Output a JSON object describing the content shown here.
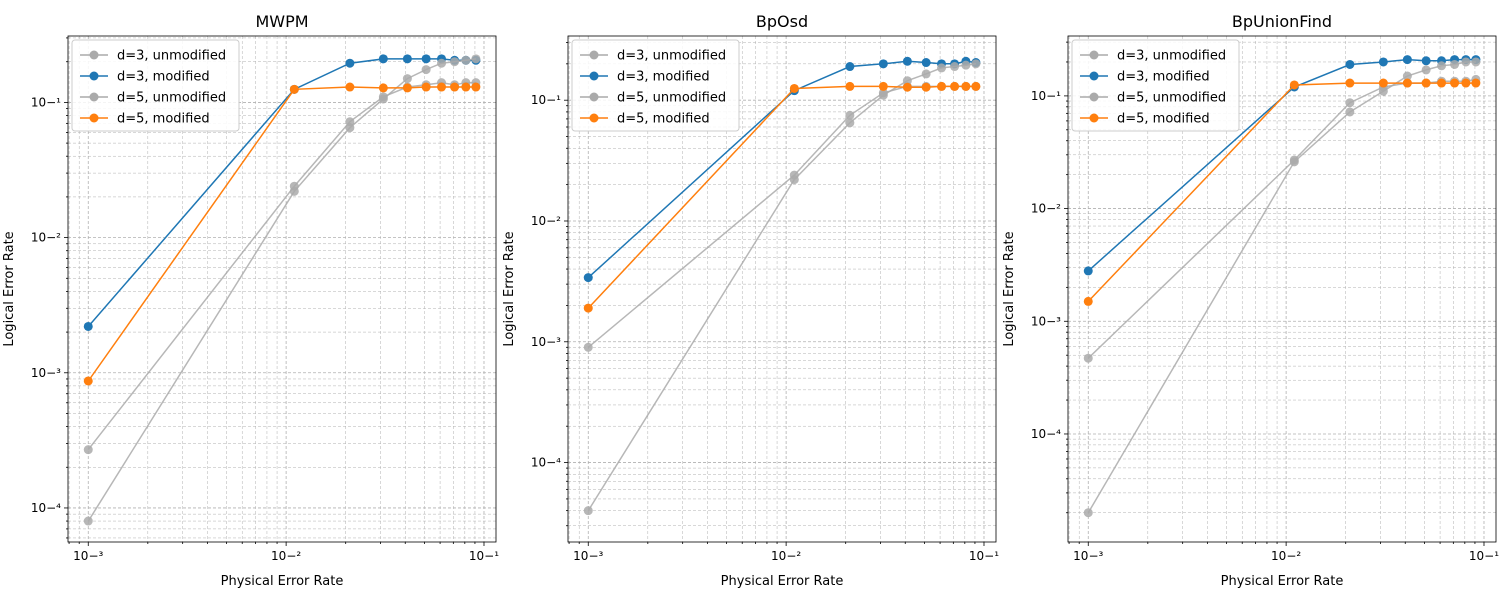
{
  "chart_data": [
    {
      "type": "line",
      "title": "MWPM",
      "xlabel": "Physical Error Rate",
      "ylabel": "Logical Error Rate",
      "xscale": "log",
      "yscale": "log",
      "xlim": [
        0.00079,
        0.115
      ],
      "ylim": [
        5.6e-05,
        0.31
      ],
      "grid": true,
      "legend": "top-left",
      "x": [
        0.001,
        0.011,
        0.021,
        0.031,
        0.041,
        0.051,
        0.061,
        0.071,
        0.081,
        0.091
      ],
      "series": [
        {
          "name": "d=3, unmodified",
          "color": "#aaaaaa",
          "values": [
            0.00027,
            0.024,
            0.072,
            0.11,
            0.13,
            0.135,
            0.14,
            0.135,
            0.14,
            0.14
          ]
        },
        {
          "name": "d=3, modified",
          "color": "#1f77b4",
          "values": [
            0.0022,
            0.125,
            0.195,
            0.21,
            0.21,
            0.21,
            0.21,
            0.205,
            0.205,
            0.205
          ]
        },
        {
          "name": "d=5, unmodified",
          "color": "#aaaaaa",
          "values": [
            8e-05,
            0.022,
            0.065,
            0.106,
            0.15,
            0.175,
            0.195,
            0.2,
            0.205,
            0.21
          ]
        },
        {
          "name": "d=5, modified",
          "color": "#ff7f0e",
          "values": [
            0.00087,
            0.125,
            0.13,
            0.128,
            0.128,
            0.13,
            0.13,
            0.13,
            0.13,
            0.13
          ]
        }
      ]
    },
    {
      "type": "line",
      "title": "BpOsd",
      "xlabel": "Physical Error Rate",
      "ylabel": "Logical Error Rate",
      "xscale": "log",
      "yscale": "log",
      "xlim": [
        0.00079,
        0.115
      ],
      "ylim": [
        2.2e-05,
        0.34
      ],
      "grid": true,
      "legend": "top-left",
      "x": [
        0.001,
        0.011,
        0.021,
        0.031,
        0.041,
        0.051,
        0.061,
        0.071,
        0.081,
        0.091
      ],
      "series": [
        {
          "name": "d=3, unmodified",
          "color": "#aaaaaa",
          "values": [
            0.0009,
            0.024,
            0.075,
            0.115,
            0.13,
            0.13,
            0.13,
            0.13,
            0.13,
            0.13
          ]
        },
        {
          "name": "d=3, modified",
          "color": "#1f77b4",
          "values": [
            0.0034,
            0.12,
            0.19,
            0.2,
            0.21,
            0.205,
            0.2,
            0.2,
            0.21,
            0.205
          ]
        },
        {
          "name": "d=5, unmodified",
          "color": "#aaaaaa",
          "values": [
            4e-05,
            0.022,
            0.065,
            0.11,
            0.145,
            0.165,
            0.185,
            0.19,
            0.195,
            0.2
          ]
        },
        {
          "name": "d=5, modified",
          "color": "#ff7f0e",
          "values": [
            0.0019,
            0.125,
            0.13,
            0.13,
            0.128,
            0.128,
            0.13,
            0.13,
            0.13,
            0.13
          ]
        }
      ]
    },
    {
      "type": "line",
      "title": "BpUnionFind",
      "xlabel": "Physical Error Rate",
      "ylabel": "Logical Error Rate",
      "xscale": "log",
      "yscale": "log",
      "xlim": [
        0.00079,
        0.115
      ],
      "ylim": [
        1.1e-05,
        0.34
      ],
      "grid": true,
      "legend": "top-left",
      "x": [
        0.001,
        0.011,
        0.021,
        0.031,
        0.041,
        0.051,
        0.061,
        0.071,
        0.081,
        0.091
      ],
      "series": [
        {
          "name": "d=3, unmodified",
          "color": "#aaaaaa",
          "values": [
            0.00047,
            0.027,
            0.087,
            0.12,
            0.13,
            0.13,
            0.135,
            0.135,
            0.135,
            0.14
          ]
        },
        {
          "name": "d=3, modified",
          "color": "#1f77b4",
          "values": [
            0.0028,
            0.12,
            0.19,
            0.2,
            0.21,
            0.205,
            0.205,
            0.21,
            0.21,
            0.21
          ]
        },
        {
          "name": "d=5, unmodified",
          "color": "#aaaaaa",
          "values": [
            2e-05,
            0.026,
            0.072,
            0.11,
            0.15,
            0.17,
            0.185,
            0.19,
            0.2,
            0.2
          ]
        },
        {
          "name": "d=5, modified",
          "color": "#ff7f0e",
          "values": [
            0.0015,
            0.125,
            0.13,
            0.13,
            0.13,
            0.13,
            0.13,
            0.13,
            0.13,
            0.13
          ]
        }
      ]
    }
  ]
}
